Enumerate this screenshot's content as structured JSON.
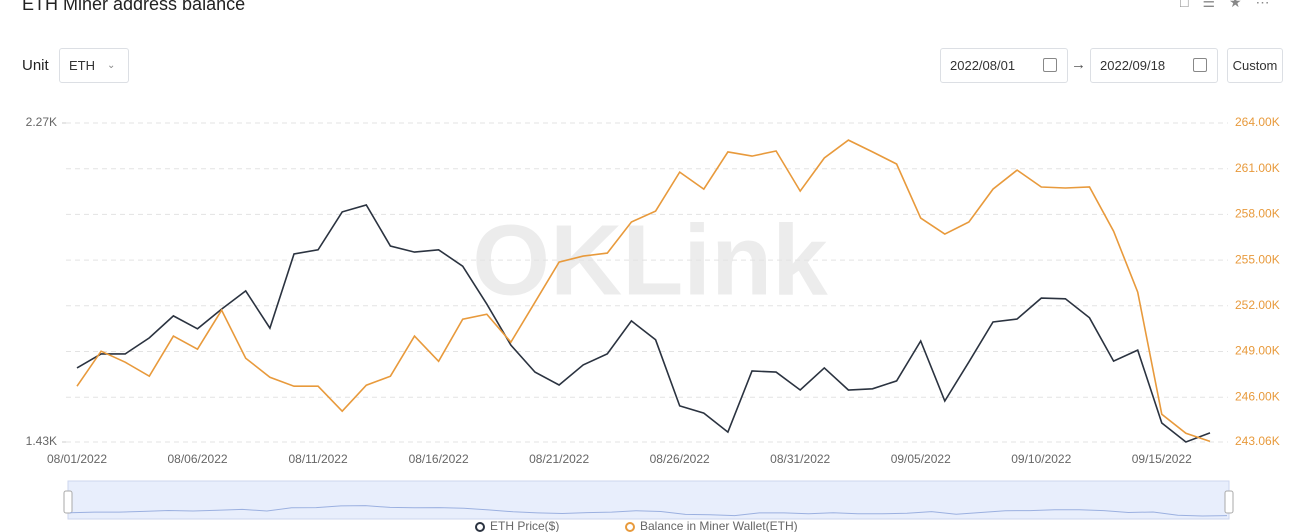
{
  "header": {
    "title": "ETH Miner address balance"
  },
  "controls": {
    "unit_label": "Unit",
    "unit": "ETH",
    "start_date": "2022/08/01",
    "end_date": "2022/09/18",
    "custom": "Custom"
  },
  "chart_data": {
    "type": "line",
    "watermark": "OKLink",
    "categories": [
      "08/01/2022",
      null,
      null,
      null,
      null,
      "08/06/2022",
      null,
      null,
      null,
      null,
      "08/11/2022",
      null,
      null,
      null,
      null,
      "08/16/2022",
      null,
      null,
      null,
      null,
      "08/21/2022",
      null,
      null,
      null,
      null,
      "08/26/2022",
      null,
      null,
      null,
      null,
      "08/31/2022",
      null,
      null,
      null,
      null,
      "09/05/2022",
      null,
      null,
      null,
      null,
      "09/10/2022",
      null,
      null,
      null,
      null,
      "09/15/2022",
      null,
      null
    ],
    "series": [
      {
        "name": "ETH Price($)",
        "color": "#2b3340",
        "values": [
          1625,
          1662,
          1662,
          1704,
          1762,
          1728,
          1780,
          1828,
          1730,
          1925,
          1936,
          2036,
          2054,
          1946,
          1930,
          1936,
          1893,
          1793,
          1685,
          1614,
          1580,
          1633,
          1662,
          1749,
          1699,
          1525,
          1506,
          1456,
          1617,
          1614,
          1567,
          1625,
          1567,
          1570,
          1591,
          1696,
          1538,
          1641,
          1746,
          1754,
          1809,
          1807,
          1757,
          1643,
          1672,
          1480,
          1430,
          1454
        ]
      },
      {
        "name": "Balance in Miner Wallet(ETH)",
        "color": "#e89a3c",
        "axis": "y2",
        "values": [
          246720,
          249020,
          248300,
          247380,
          250010,
          249150,
          251710,
          248560,
          247310,
          246720,
          246720,
          245080,
          246790,
          247380,
          250010,
          248360,
          251120,
          251450,
          249610,
          252240,
          254870,
          255260,
          255460,
          257500,
          258220,
          260780,
          259660,
          262100,
          261830,
          262160,
          259530,
          261700,
          262880,
          262100,
          261310,
          257760,
          256710,
          257500,
          259660,
          260910,
          259800,
          259730,
          259800,
          256900,
          252900,
          244880,
          243630,
          243100
        ]
      }
    ],
    "ylim": [
      1430,
      2270
    ],
    "yticks": [
      {
        "value": 1430,
        "label": "1.43K"
      },
      {
        "value": 2270,
        "label": "2.27K"
      }
    ],
    "y2lim": [
      243060,
      264000
    ],
    "y2ticks": [
      {
        "value": 243060,
        "label": "243.06K"
      },
      {
        "value": 246000,
        "label": "246.00K"
      },
      {
        "value": 249000,
        "label": "249.00K"
      },
      {
        "value": 252000,
        "label": "252.00K"
      },
      {
        "value": 255000,
        "label": "255.00K"
      },
      {
        "value": 258000,
        "label": "258.00K"
      },
      {
        "value": 261000,
        "label": "261.00K"
      },
      {
        "value": 264000,
        "label": "264.00K"
      }
    ],
    "grid": true
  }
}
